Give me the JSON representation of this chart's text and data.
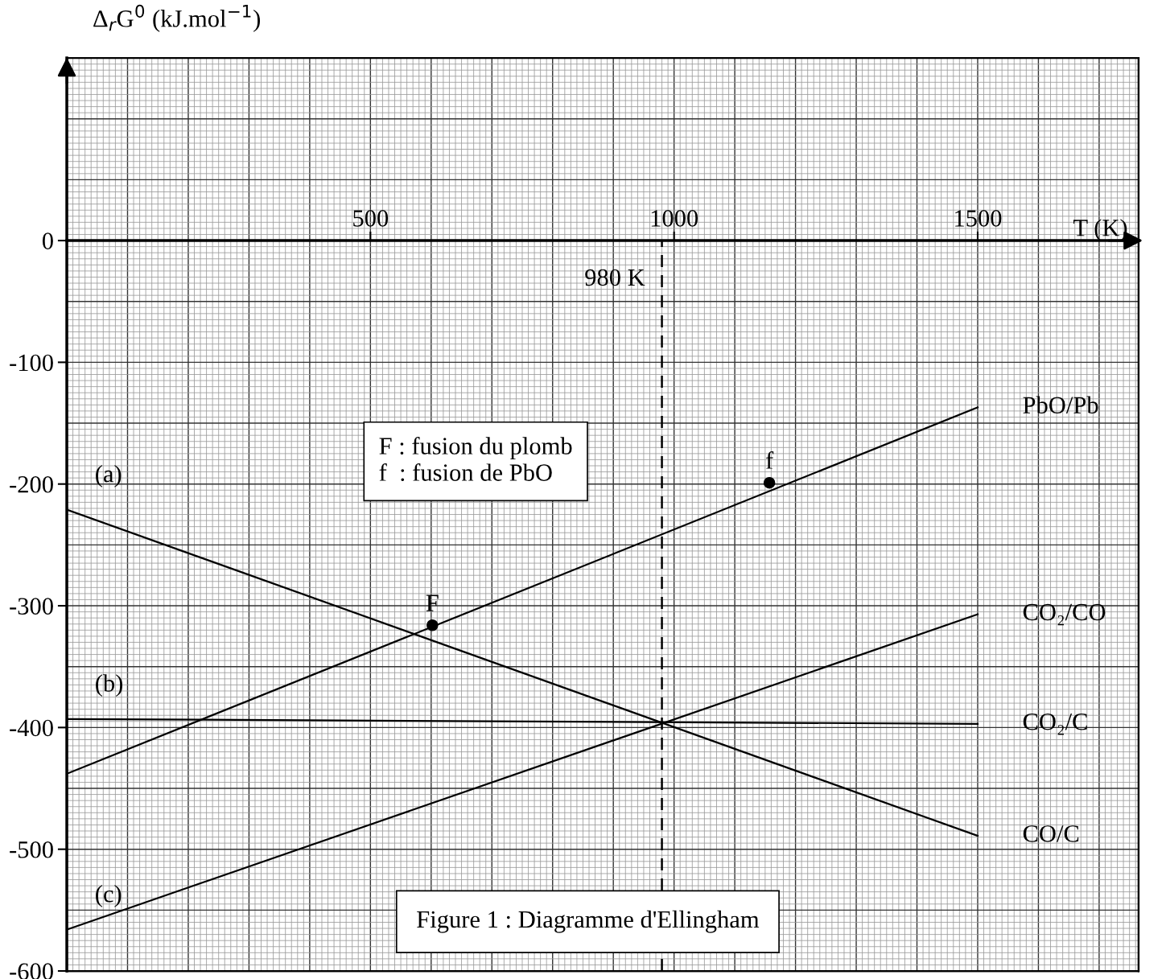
{
  "chart_data": {
    "type": "line",
    "xlabel": "T (K)",
    "ylabel": "Δ$_{r}$G$^{0}$ (kJ.mol$^{−1}$)",
    "xlim": [
      0,
      1765
    ],
    "ylim": [
      -600,
      150
    ],
    "xticks": [
      500,
      1000,
      1500
    ],
    "yticks": [
      -600,
      -500,
      -400,
      -300,
      -200,
      -100,
      0
    ],
    "grid": true,
    "series": [
      {
        "name": "PbO/Pb",
        "color": "#000000",
        "x": [
          0,
          1500
        ],
        "values": [
          -438,
          -137
        ]
      },
      {
        "name": "CO₂/CO",
        "color": "#000000",
        "x": [
          0,
          1500
        ],
        "values": [
          -566,
          -307
        ]
      },
      {
        "name": "CO₂/C",
        "color": "#000000",
        "x": [
          0,
          1500
        ],
        "values": [
          -393,
          -397
        ]
      },
      {
        "name": "CO/C",
        "color": "#000000",
        "x": [
          0,
          1500
        ],
        "values": [
          -221,
          -489
        ]
      },
      {
        "type": "scatter",
        "color": "#000000",
        "marker": "circle",
        "x": [
          602,
          1157
        ],
        "values": [
          -316,
          -199
        ]
      }
    ],
    "ref_lines": [
      {
        "axis": "x",
        "value": 980,
        "label": "980 K",
        "line_style": "dashed",
        "color": "#000000"
      }
    ],
    "annotations": [
      "F : fusion du plomb",
      "f  : fusion de PbO",
      "Figure 1 : Diagramme d'Ellingham",
      {
        "text": "(a)",
        "x": 0,
        "y": -221
      },
      {
        "text": "(b)",
        "x": 0,
        "y": -393
      },
      {
        "text": "(c)",
        "x": 0,
        "y": -566
      },
      {
        "text": "F",
        "x": 602,
        "y": -316
      },
      {
        "text": "f",
        "x": 1157,
        "y": -199
      }
    ]
  }
}
